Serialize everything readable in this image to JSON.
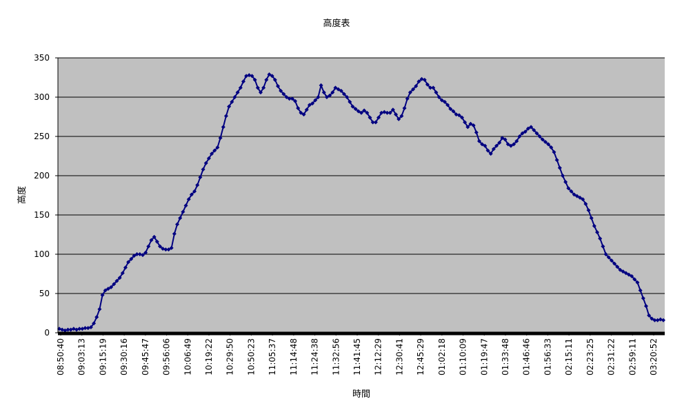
{
  "chart_data": {
    "type": "line",
    "title": "高度表",
    "xlabel": "時間",
    "ylabel": "高度",
    "ylim": [
      0,
      350
    ],
    "yticks": [
      0,
      50,
      100,
      150,
      200,
      250,
      300,
      350
    ],
    "grid": true,
    "legend": "none",
    "colors": {
      "plot_bg": "#c0c0c0",
      "series": "#000080",
      "gridline": "#000000",
      "axis": "#000000"
    },
    "marker": "diamond",
    "x_tick_labels": [
      "08:50:40",
      "09:03:13",
      "09:15:19",
      "09:30:16",
      "09:45:47",
      "09:56:06",
      "10:06:49",
      "10:19:22",
      "10:29:50",
      "10:50:23",
      "11:05:37",
      "11:14:48",
      "11:24:38",
      "11:32:56",
      "11:41:45",
      "12:12:29",
      "12:30:41",
      "12:45:29",
      "01:02:18",
      "01:10:09",
      "01:19:47",
      "01:33:48",
      "01:46:46",
      "01:56:33",
      "02:15:11",
      "02:23:25",
      "02:31:22",
      "02:59:11",
      "03:20:52"
    ],
    "series": [
      {
        "values": [
          5,
          4,
          3,
          4,
          4,
          5,
          4,
          5,
          5,
          6,
          6,
          7,
          12,
          20,
          30,
          48,
          54,
          56,
          58,
          62,
          66,
          70,
          76,
          83,
          90,
          94,
          98,
          100,
          100,
          99,
          102,
          110,
          118,
          122,
          116,
          110,
          107,
          106,
          106,
          108,
          126,
          138,
          146,
          154,
          162,
          170,
          176,
          180,
          188,
          198,
          208,
          216,
          222,
          228,
          232,
          236,
          248,
          262,
          276,
          288,
          294,
          300,
          306,
          312,
          320,
          327,
          328,
          327,
          322,
          312,
          306,
          312,
          322,
          329,
          327,
          322,
          314,
          308,
          304,
          300,
          298,
          298,
          295,
          286,
          280,
          278,
          284,
          290,
          292,
          296,
          300,
          315,
          306,
          300,
          302,
          306,
          312,
          310,
          308,
          304,
          300,
          294,
          288,
          285,
          282,
          280,
          283,
          280,
          274,
          268,
          268,
          274,
          280,
          281,
          280,
          280,
          284,
          278,
          272,
          276,
          286,
          298,
          306,
          310,
          314,
          320,
          323,
          322,
          316,
          312,
          312,
          306,
          300,
          296,
          294,
          290,
          285,
          282,
          278,
          277,
          274,
          268,
          262,
          266,
          264,
          255,
          244,
          240,
          238,
          232,
          228,
          234,
          238,
          242,
          248,
          246,
          240,
          238,
          240,
          244,
          250,
          254,
          256,
          260,
          262,
          258,
          254,
          250,
          246,
          243,
          240,
          236,
          230,
          220,
          210,
          200,
          192,
          184,
          180,
          176,
          174,
          172,
          170,
          164,
          156,
          146,
          136,
          128,
          120,
          110,
          100,
          96,
          92,
          88,
          84,
          80,
          78,
          76,
          74,
          72,
          68,
          64,
          54,
          44,
          34,
          22,
          18,
          16,
          16,
          17,
          16
        ]
      }
    ]
  }
}
